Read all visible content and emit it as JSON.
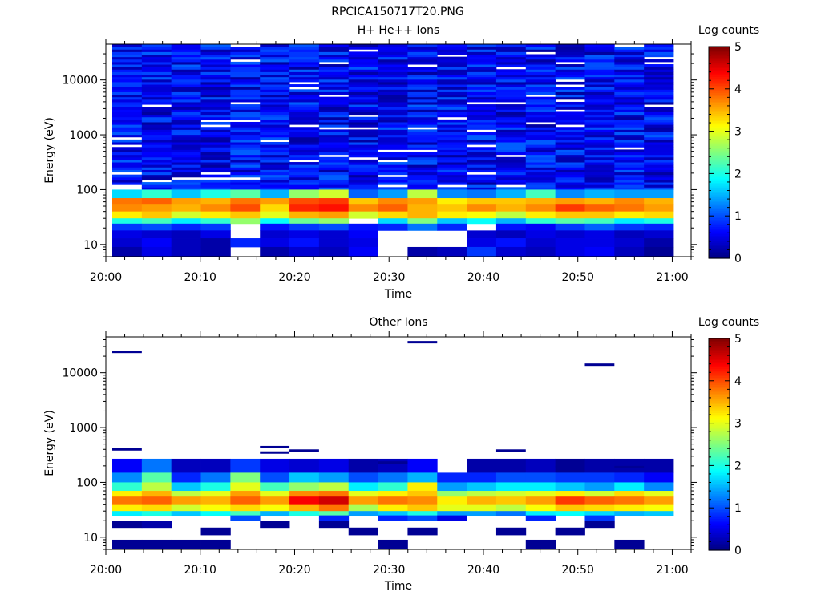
{
  "figure_title": "RPCICA150717T20.PNG",
  "colorbar_ticks": [
    "0",
    "1",
    "2",
    "3",
    "4",
    "5"
  ],
  "chart_data": [
    {
      "type": "heatmap",
      "title": "H+ He++ Ions",
      "xlabel": "Time",
      "ylabel": "Energy (eV)",
      "colorbar_label": "Log counts",
      "colorbar_range": [
        0,
        5
      ],
      "colorscale": "jet",
      "yscale": "log",
      "ylim": [
        6,
        45000
      ],
      "xlim": [
        "20:00",
        "21:02"
      ],
      "x_ticks": [
        "20:00",
        "20:10",
        "20:20",
        "20:30",
        "20:40",
        "20:50",
        "21:00"
      ],
      "y_ticks": [
        "10",
        "100",
        "1000",
        "10000"
      ],
      "x_bins": [
        "20:00",
        "20:03:12",
        "20:06:24",
        "20:09:36",
        "20:12:48",
        "20:16",
        "20:19:12",
        "20:22:24",
        "20:25:36",
        "20:28:48",
        "20:32",
        "20:35:12",
        "20:38:24",
        "20:41:36",
        "20:44:48",
        "20:48",
        "20:51:12",
        "20:54:24",
        "20:57:36"
      ],
      "band_rows": [
        {
          "energy_range": [
            70,
            100
          ],
          "values": [
            1.7,
            2.1,
            1.6,
            2.0,
            2.3,
            1.5,
            2.6,
            2.9,
            1.1,
            1.4,
            2.8,
            1.3,
            1.2,
            1.5,
            2.2,
            1.3,
            1.5,
            1.4,
            1.4
          ]
        },
        {
          "energy_range": [
            55,
            70
          ],
          "values": [
            3.8,
            3.9,
            3.6,
            3.5,
            3.8,
            3.6,
            4.0,
            4.1,
            3.4,
            3.7,
            3.6,
            3.2,
            3.4,
            3.4,
            3.5,
            3.6,
            3.5,
            3.7,
            3.5
          ]
        },
        {
          "energy_range": [
            40,
            55
          ],
          "values": [
            3.7,
            3.6,
            3.5,
            3.7,
            4.0,
            3.3,
            4.2,
            4.3,
            3.7,
            3.9,
            3.5,
            3.4,
            3.7,
            3.5,
            3.7,
            4.1,
            3.9,
            3.8,
            3.6
          ]
        },
        {
          "energy_range": [
            30,
            40
          ],
          "values": [
            3.2,
            3.4,
            2.9,
            3.2,
            3.4,
            3.0,
            3.5,
            3.6,
            2.9,
            3.3,
            3.5,
            3.2,
            3.1,
            2.8,
            3.2,
            3.4,
            3.4,
            3.2,
            3.3
          ]
        },
        {
          "energy_range": [
            24,
            30
          ],
          "values": [
            2.0,
            2.2,
            1.8,
            2.1,
            2.6,
            1.9,
            2.4,
            2.6,
            0.0,
            1.7,
            2.5,
            1.6,
            1.9,
            1.5,
            2.1,
            2.3,
            2.2,
            1.8,
            2.0
          ]
        },
        {
          "energy_range": [
            18,
            24
          ],
          "values": [
            0.9,
            1.0,
            0.8,
            0.9,
            0.0,
            0.7,
            0.9,
            1.0,
            0.7,
            0.8,
            1.2,
            0.8,
            0.0,
            0.7,
            0.6,
            0.9,
            1.1,
            0.9,
            0.8
          ]
        },
        {
          "energy_range": [
            13,
            18
          ],
          "values": [
            0.5,
            0.4,
            0.3,
            0.5,
            0.0,
            0.4,
            0.5,
            0.4,
            0.6,
            0.0,
            0.0,
            0.0,
            0.4,
            0.3,
            0.5,
            0.4,
            0.5,
            0.3,
            0.4
          ]
        },
        {
          "energy_range": [
            9,
            13
          ],
          "values": [
            0.4,
            0.6,
            0.3,
            0.2,
            0.8,
            0.5,
            0.7,
            0.4,
            0.5,
            0.0,
            0.0,
            0.0,
            0.5,
            0.7,
            0.4,
            0.5,
            0.5,
            0.4,
            0.2
          ]
        },
        {
          "energy_range": [
            6,
            9
          ],
          "values": [
            0.2,
            0.5,
            0.3,
            0.2,
            0.0,
            0.2,
            0.4,
            0.3,
            0.6,
            0.0,
            0.2,
            0.3,
            0.9,
            0.4,
            0.3,
            0.5,
            0.6,
            0.3,
            0.1
          ]
        }
      ],
      "background_above": {
        "energy_range": [
          100,
          45000
        ],
        "level": "~0.3-1.0 log counts (dark blue noise with scattered empty bins)"
      }
    },
    {
      "type": "heatmap",
      "title": "Other Ions",
      "xlabel": "Time",
      "ylabel": "Energy (eV)",
      "colorbar_label": "Log counts",
      "colorbar_range": [
        0,
        5
      ],
      "colorscale": "jet",
      "yscale": "log",
      "ylim": [
        6,
        45000
      ],
      "xlim": [
        "20:00",
        "21:02"
      ],
      "x_ticks": [
        "20:00",
        "20:10",
        "20:20",
        "20:30",
        "20:40",
        "20:50",
        "21:00"
      ],
      "y_ticks": [
        "10",
        "100",
        "1000",
        "10000"
      ],
      "x_bins": [
        "20:00",
        "20:03:12",
        "20:06:24",
        "20:09:36",
        "20:12:48",
        "20:16",
        "20:19:12",
        "20:22:24",
        "20:25:36",
        "20:28:48",
        "20:32",
        "20:35:12",
        "20:38:24",
        "20:41:36",
        "20:44:48",
        "20:48",
        "20:51:12",
        "20:54:24",
        "20:57:36"
      ],
      "band_rows": [
        {
          "energy_range": [
            150,
            270
          ],
          "values": [
            0.6,
            1.2,
            0.3,
            0.3,
            0.9,
            0.5,
            0.4,
            0.5,
            0.2,
            0.3,
            0.6,
            0.0,
            0.2,
            0.2,
            0.3,
            0.1,
            0.2,
            0.2,
            0.2
          ]
        },
        {
          "energy_range": [
            100,
            150
          ],
          "values": [
            1.3,
            2.3,
            0.8,
            1.2,
            2.5,
            1.0,
            1.6,
            1.4,
            1.0,
            1.2,
            1.5,
            0.8,
            0.8,
            1.0,
            1.0,
            0.9,
            0.9,
            0.8,
            0.6
          ]
        },
        {
          "energy_range": [
            70,
            100
          ],
          "values": [
            2.1,
            2.8,
            1.6,
            2.0,
            3.0,
            2.2,
            2.6,
            2.8,
            1.8,
            2.1,
            3.2,
            1.4,
            1.6,
            1.8,
            1.8,
            1.6,
            1.4,
            1.8,
            1.3
          ]
        },
        {
          "energy_range": [
            55,
            70
          ],
          "values": [
            3.2,
            3.5,
            2.8,
            3.0,
            3.6,
            3.0,
            3.7,
            3.8,
            3.0,
            3.2,
            3.4,
            2.6,
            2.8,
            2.9,
            3.0,
            3.2,
            2.9,
            3.3,
            3.0
          ]
        },
        {
          "energy_range": [
            40,
            55
          ],
          "values": [
            3.8,
            3.9,
            3.6,
            3.5,
            3.9,
            3.6,
            4.4,
            4.6,
            3.6,
            3.8,
            3.7,
            3.2,
            3.5,
            3.4,
            3.6,
            4.1,
            3.9,
            3.8,
            3.6
          ]
        },
        {
          "energy_range": [
            30,
            40
          ],
          "values": [
            3.2,
            3.3,
            2.9,
            3.1,
            3.3,
            3.1,
            3.5,
            3.8,
            2.7,
            3.2,
            3.4,
            3.0,
            3.0,
            2.8,
            3.1,
            3.4,
            3.3,
            3.2,
            3.1
          ]
        },
        {
          "energy_range": [
            25,
            30
          ],
          "values": [
            1.8,
            2.0,
            1.6,
            1.9,
            2.2,
            1.5,
            2.0,
            2.3,
            1.4,
            1.6,
            2.0,
            1.4,
            1.4,
            1.2,
            1.8,
            1.9,
            1.7,
            1.5,
            1.6
          ]
        },
        {
          "energy_range": [
            20,
            25
          ],
          "values": [
            0.0,
            0.0,
            0.0,
            0.0,
            1.0,
            0.0,
            0.0,
            0.8,
            0.0,
            0.8,
            1.0,
            0.5,
            0.0,
            0.0,
            0.8,
            0.0,
            0.9,
            0.0,
            0.0
          ]
        },
        {
          "energy_range": [
            15,
            20
          ],
          "values": [
            0.1,
            0.2,
            0.0,
            0.0,
            0.0,
            0.1,
            0.0,
            0.1,
            0.0,
            0.0,
            0.0,
            0.0,
            0.0,
            0.0,
            0.0,
            0.0,
            0.1,
            0.0,
            0.0
          ]
        },
        {
          "energy_range": [
            11,
            15
          ],
          "values": [
            0.0,
            0.0,
            0.0,
            0.1,
            0.0,
            0.0,
            0.0,
            0.0,
            0.1,
            0.0,
            0.1,
            0.0,
            0.0,
            0.1,
            0.0,
            0.1,
            0.0,
            0.0,
            0.0
          ]
        },
        {
          "energy_range": [
            6,
            9
          ],
          "values": [
            0.1,
            0.1,
            0.1,
            0.1,
            0.0,
            0.0,
            0.0,
            0.0,
            0.0,
            0.1,
            0.0,
            0.0,
            0.0,
            0.0,
            0.1,
            0.0,
            0.0,
            0.1,
            0.0
          ]
        }
      ],
      "sparse_lines": [
        {
          "x_bin": "20:00",
          "energy": 24000,
          "value": 0.1
        },
        {
          "x_bin": "20:00",
          "energy": 400,
          "value": 0.1
        },
        {
          "x_bin": "20:32",
          "energy": 36000,
          "value": 0.1
        },
        {
          "x_bin": "20:51:12",
          "energy": 14000,
          "value": 0.1
        },
        {
          "x_bin": "20:16",
          "energy": 350,
          "value": 0.1
        },
        {
          "x_bin": "20:16",
          "energy": 440,
          "value": 0.1
        },
        {
          "x_bin": "20:19:12",
          "energy": 380,
          "value": 0.1
        },
        {
          "x_bin": "20:41:36",
          "energy": 380,
          "value": 0.1
        },
        {
          "x_bin": "20:28:48",
          "energy": 230,
          "value": 0.1
        },
        {
          "x_bin": "20:48",
          "energy": 190,
          "value": 0.1
        },
        {
          "x_bin": "20:54:24",
          "energy": 190,
          "value": 0.1
        }
      ]
    }
  ]
}
